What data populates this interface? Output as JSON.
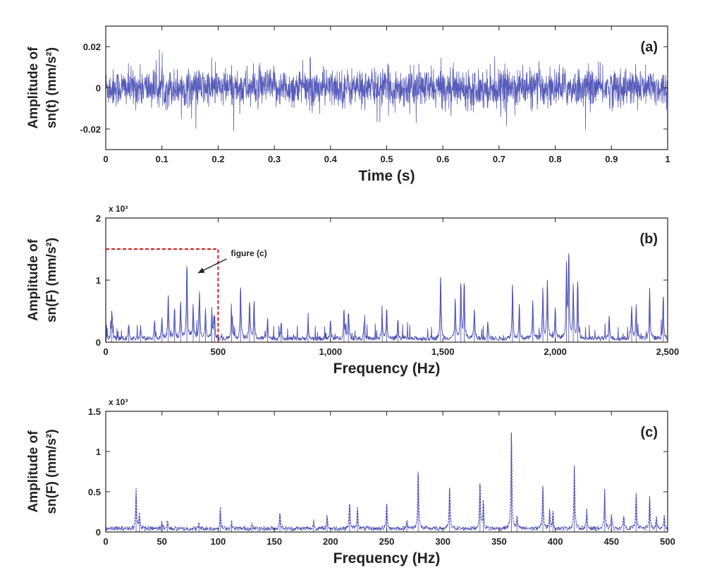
{
  "colors": {
    "signal": "#3a3fae",
    "signal_light": "#8f93d6",
    "box": "#d01e1e",
    "axis": "#222222"
  },
  "chart_data": [
    {
      "id": "a",
      "type": "line",
      "panel_label": "(a)",
      "xlabel": "Time (s)",
      "ylabel_line1": "Amplitude of",
      "ylabel_line2": "sn(t) (mm/s²)",
      "xlim": [
        0,
        1
      ],
      "ylim": [
        -0.03,
        0.03
      ],
      "xticks": [
        0,
        0.1,
        0.2,
        0.3,
        0.4,
        0.5,
        0.6,
        0.7,
        0.8,
        0.9,
        1
      ],
      "xtick_labels": [
        "0",
        "0.1",
        "0.2",
        "0.3",
        "0.4",
        "0.5",
        "0.6",
        "0.7",
        "0.8",
        "0.9",
        "1"
      ],
      "yticks": [
        -0.02,
        0,
        0.02
      ],
      "ytick_labels": [
        "-0.02",
        "0",
        "0.02"
      ],
      "signal": {
        "kind": "noise",
        "n": 2600,
        "std": 0.0045,
        "max_abs": 0.021
      }
    },
    {
      "id": "b",
      "type": "line",
      "panel_label": "(b)",
      "xlabel": "Frequency (Hz)",
      "ylabel_line1": "Amplitude of",
      "ylabel_line2": "sn(F) (mm/s²)",
      "scale_label": "x 10³",
      "xlim": [
        0,
        2500
      ],
      "ylim": [
        0,
        2
      ],
      "xticks": [
        0,
        500,
        1000,
        1500,
        2000,
        2500
      ],
      "xtick_labels": [
        "0",
        "500",
        "1,000",
        "1,500",
        "2,000",
        "2,500"
      ],
      "yticks": [
        0,
        1,
        2
      ],
      "ytick_labels": [
        "0",
        "1",
        "2"
      ],
      "annotation": {
        "text": "figure (c)",
        "box_x": [
          0,
          500
        ],
        "box_y": [
          0,
          1.5
        ]
      },
      "peaks": [
        {
          "f": 27,
          "a": 0.48
        },
        {
          "f": 102,
          "a": 0.25
        },
        {
          "f": 155,
          "a": 0.2
        },
        {
          "f": 217,
          "a": 0.3
        },
        {
          "f": 250,
          "a": 0.33
        },
        {
          "f": 278,
          "a": 0.72
        },
        {
          "f": 306,
          "a": 0.52
        },
        {
          "f": 333,
          "a": 0.58
        },
        {
          "f": 361,
          "a": 1.23
        },
        {
          "f": 389,
          "a": 0.55
        },
        {
          "f": 417,
          "a": 0.76
        },
        {
          "f": 444,
          "a": 0.45
        },
        {
          "f": 472,
          "a": 0.46
        },
        {
          "f": 484,
          "a": 0.38
        },
        {
          "f": 560,
          "a": 0.45
        },
        {
          "f": 600,
          "a": 0.85
        },
        {
          "f": 640,
          "a": 0.62
        },
        {
          "f": 660,
          "a": 0.6
        },
        {
          "f": 720,
          "a": 0.35
        },
        {
          "f": 780,
          "a": 0.28
        },
        {
          "f": 900,
          "a": 0.25
        },
        {
          "f": 1000,
          "a": 0.3
        },
        {
          "f": 1060,
          "a": 0.48
        },
        {
          "f": 1080,
          "a": 0.45
        },
        {
          "f": 1150,
          "a": 0.28
        },
        {
          "f": 1230,
          "a": 0.38
        },
        {
          "f": 1250,
          "a": 0.48
        },
        {
          "f": 1300,
          "a": 0.32
        },
        {
          "f": 1490,
          "a": 1.05
        },
        {
          "f": 1555,
          "a": 0.65
        },
        {
          "f": 1580,
          "a": 0.9
        },
        {
          "f": 1595,
          "a": 0.92
        },
        {
          "f": 1640,
          "a": 0.5
        },
        {
          "f": 1700,
          "a": 0.3
        },
        {
          "f": 1810,
          "a": 0.9
        },
        {
          "f": 1840,
          "a": 0.55
        },
        {
          "f": 1900,
          "a": 0.6
        },
        {
          "f": 1945,
          "a": 0.8
        },
        {
          "f": 1965,
          "a": 0.98
        },
        {
          "f": 2000,
          "a": 0.5
        },
        {
          "f": 2050,
          "a": 1.22
        },
        {
          "f": 2060,
          "a": 1.3
        },
        {
          "f": 2080,
          "a": 0.85
        },
        {
          "f": 2100,
          "a": 0.88
        },
        {
          "f": 2240,
          "a": 0.4
        },
        {
          "f": 2340,
          "a": 0.55
        },
        {
          "f": 2360,
          "a": 0.55
        },
        {
          "f": 2420,
          "a": 0.84
        },
        {
          "f": 2480,
          "a": 0.65
        }
      ]
    },
    {
      "id": "c",
      "type": "line",
      "panel_label": "(c)",
      "xlabel": "Frequency (Hz)",
      "ylabel_line1": "Amplitude of",
      "ylabel_line2": "sn(F) (mm/s²)",
      "scale_label": "x 10³",
      "xlim": [
        0,
        500
      ],
      "ylim": [
        0,
        1.5
      ],
      "xticks": [
        0,
        50,
        100,
        150,
        200,
        250,
        300,
        350,
        400,
        450,
        500
      ],
      "xtick_labels": [
        "0",
        "50",
        "100",
        "150",
        "200",
        "250",
        "300",
        "350",
        "400",
        "450",
        "500"
      ],
      "yticks": [
        0,
        0.5,
        1,
        1.5
      ],
      "ytick_labels": [
        "0",
        "0.5",
        "1",
        "1.5"
      ],
      "peaks": [
        {
          "f": 27,
          "a": 0.48
        },
        {
          "f": 30,
          "a": 0.2
        },
        {
          "f": 50,
          "a": 0.1
        },
        {
          "f": 55,
          "a": 0.1
        },
        {
          "f": 83,
          "a": 0.07
        },
        {
          "f": 102,
          "a": 0.25
        },
        {
          "f": 112,
          "a": 0.08
        },
        {
          "f": 130,
          "a": 0.06
        },
        {
          "f": 155,
          "a": 0.22
        },
        {
          "f": 185,
          "a": 0.1
        },
        {
          "f": 197,
          "a": 0.17
        },
        {
          "f": 217,
          "a": 0.34
        },
        {
          "f": 224,
          "a": 0.27
        },
        {
          "f": 250,
          "a": 0.33
        },
        {
          "f": 268,
          "a": 0.12
        },
        {
          "f": 278,
          "a": 0.75
        },
        {
          "f": 306,
          "a": 0.53
        },
        {
          "f": 333,
          "a": 0.59
        },
        {
          "f": 336,
          "a": 0.35
        },
        {
          "f": 361,
          "a": 1.24
        },
        {
          "f": 366,
          "a": 0.15
        },
        {
          "f": 389,
          "a": 0.56
        },
        {
          "f": 395,
          "a": 0.24
        },
        {
          "f": 398,
          "a": 0.2
        },
        {
          "f": 417,
          "a": 0.78
        },
        {
          "f": 428,
          "a": 0.22
        },
        {
          "f": 444,
          "a": 0.47
        },
        {
          "f": 450,
          "a": 0.18
        },
        {
          "f": 461,
          "a": 0.18
        },
        {
          "f": 472,
          "a": 0.47
        },
        {
          "f": 484,
          "a": 0.4
        },
        {
          "f": 490,
          "a": 0.15
        },
        {
          "f": 497,
          "a": 0.18
        }
      ]
    }
  ]
}
